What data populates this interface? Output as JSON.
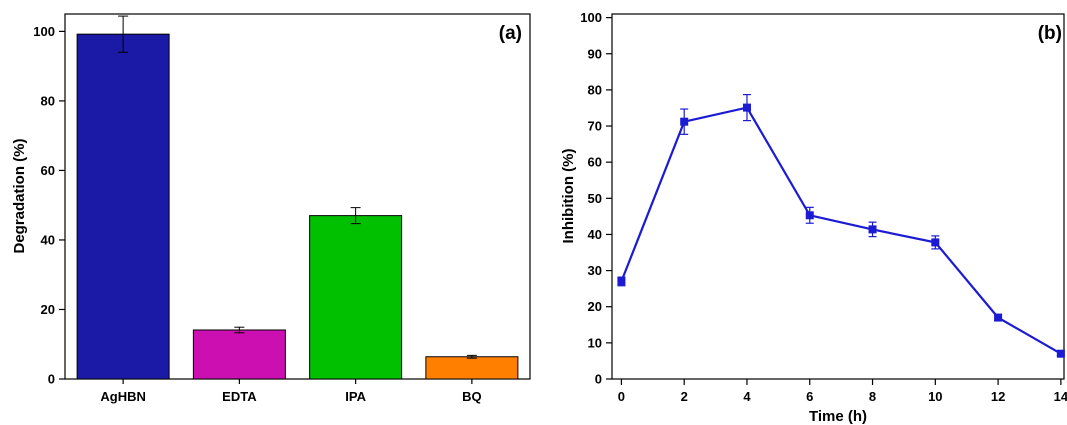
{
  "chart_data": [
    {
      "type": "bar",
      "panel_label": "(a)",
      "categories": [
        "AgHBN",
        "EDTA",
        "IPA",
        "BQ"
      ],
      "values": [
        99.2,
        14.1,
        47.0,
        6.4
      ],
      "errors": [
        5.2,
        0.8,
        2.3,
        0.4
      ],
      "bar_colors": [
        "#1a1aa6",
        "#cc0fb0",
        "#00c000",
        "#ff8000"
      ],
      "xlabel": "",
      "ylabel": "Degradation (%)",
      "ylim": [
        0,
        105
      ],
      "yticks": [
        0,
        20,
        40,
        60,
        80,
        100
      ],
      "grid": false,
      "legend": "none"
    },
    {
      "type": "line",
      "panel_label": "(b)",
      "series": [
        {
          "x": [
            0,
            2,
            4,
            6,
            8,
            10,
            12,
            14
          ],
          "values": [
            27.0,
            71.2,
            75.1,
            45.3,
            41.4,
            37.8,
            17.0,
            7.0
          ],
          "errors": [
            1.2,
            3.5,
            3.6,
            2.2,
            2.0,
            1.8,
            0.8,
            0.5
          ],
          "color": "#1b1bd4",
          "marker": "square"
        }
      ],
      "xlabel": "Time (h)",
      "ylabel": "Inhibition (%)",
      "xlim": [
        -0.3,
        14.1
      ],
      "ylim": [
        0,
        101
      ],
      "xticks": [
        0,
        2,
        4,
        6,
        8,
        10,
        12,
        14
      ],
      "yticks": [
        0,
        10,
        20,
        30,
        40,
        50,
        60,
        70,
        80,
        90,
        100
      ],
      "grid": false,
      "legend": "none"
    }
  ]
}
